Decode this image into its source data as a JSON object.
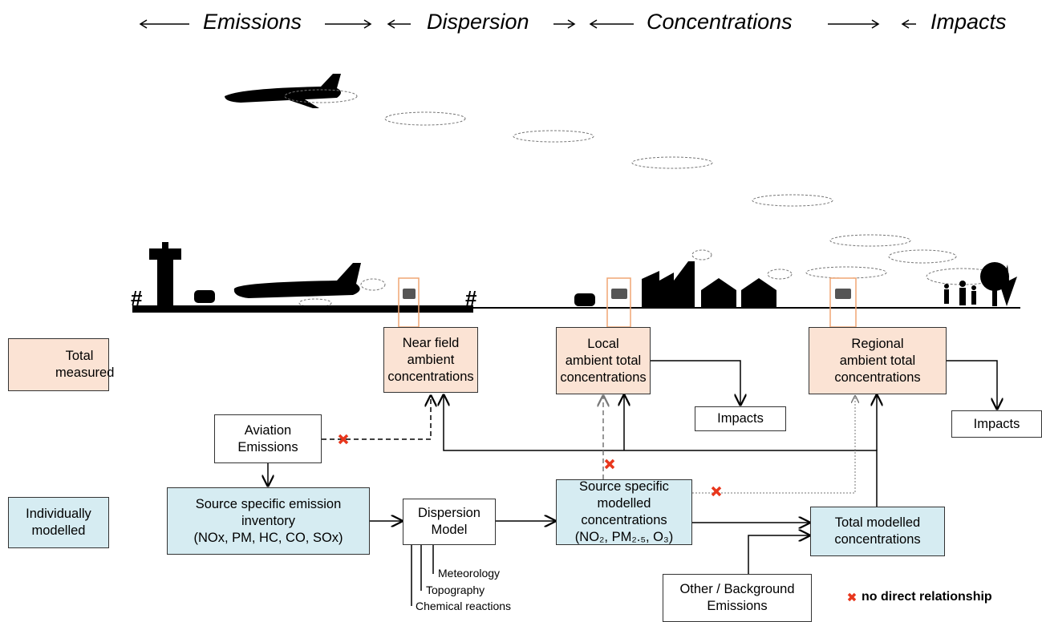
{
  "header": {
    "stages": [
      "Emissions",
      "Dispersion",
      "Concentrations",
      "Impacts"
    ]
  },
  "nodes": {
    "near_field": {
      "lines": [
        "Near field",
        "ambient",
        "concentrations"
      ]
    },
    "local": {
      "lines": [
        "Local",
        "ambient total",
        "concentrations"
      ]
    },
    "regional": {
      "lines": [
        "Regional",
        "ambient total",
        "concentrations"
      ]
    },
    "impacts_local": {
      "lines": [
        "Impacts"
      ]
    },
    "impacts_regional": {
      "lines": [
        "Impacts"
      ]
    },
    "aviation": {
      "lines": [
        "Aviation",
        "Emissions"
      ]
    },
    "inventory": {
      "lines": [
        "Source specific emission",
        "inventory",
        "(NOx, PM, HC, CO, SOx)"
      ]
    },
    "dispersion": {
      "lines": [
        "Dispersion",
        "Model"
      ]
    },
    "modelled": {
      "lines": [
        "Source specific",
        "modelled",
        "concentrations",
        "(NO₂, PM₂.₅, O₃)"
      ]
    },
    "total_modelled": {
      "lines": [
        "Total modelled",
        "concentrations"
      ]
    },
    "background": {
      "lines": [
        "Other / Background",
        "Emissions"
      ]
    }
  },
  "dispersion_factors": [
    "Meteorology",
    "Topography",
    "Chemical reactions"
  ],
  "legend": {
    "measured": "Total measured",
    "modelled": [
      "Individually",
      "modelled"
    ],
    "no_relation": "no direct relationship"
  }
}
